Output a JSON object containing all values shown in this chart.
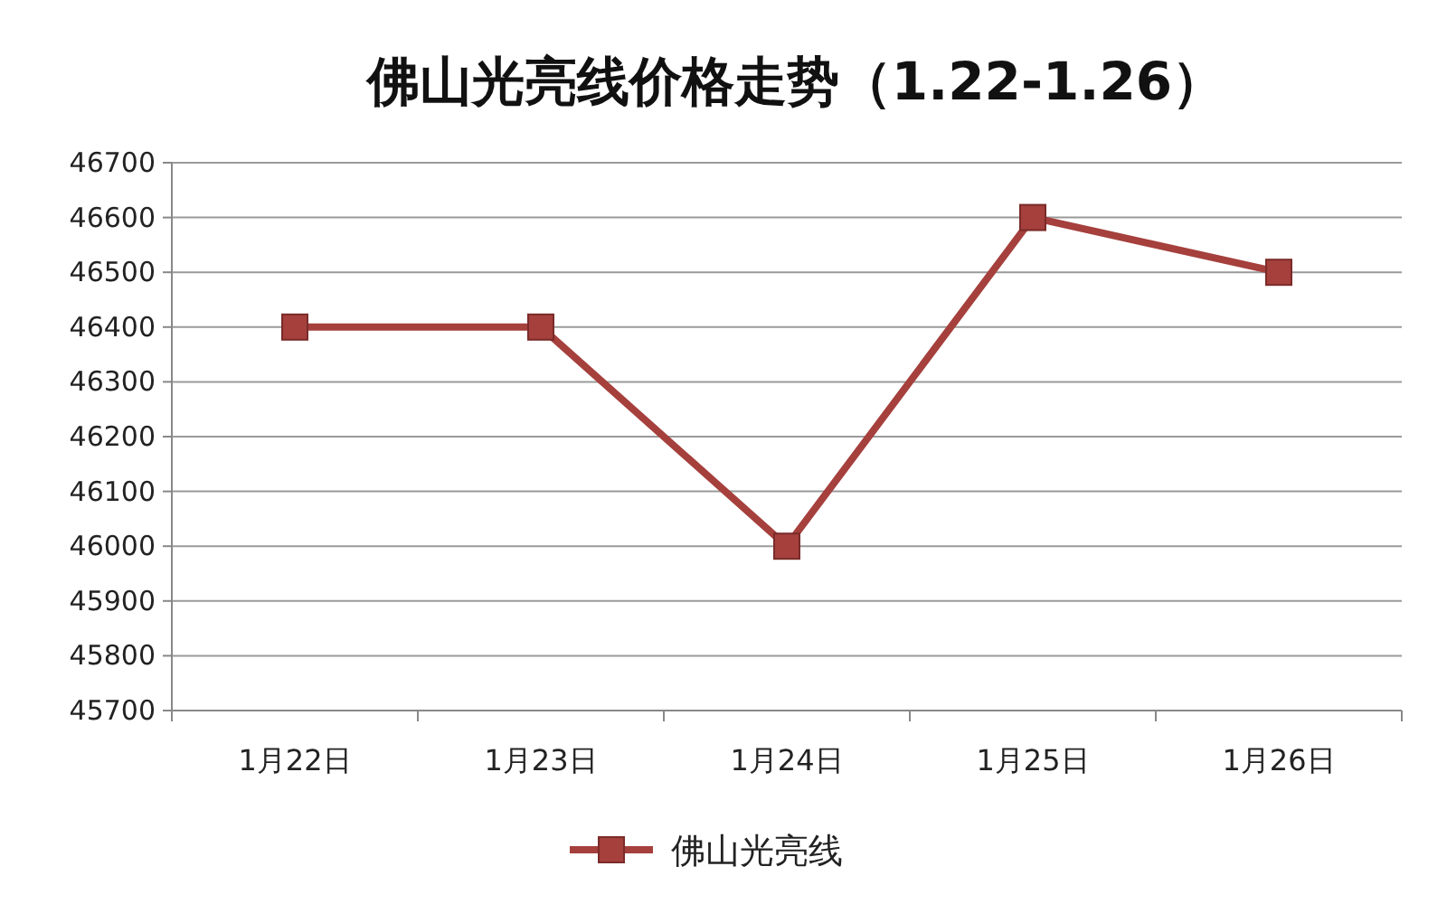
{
  "chart_data": {
    "type": "line",
    "title": "佛山光亮线价格走势（1.22-1.26）",
    "categories": [
      "1月22日",
      "1月23日",
      "1月24日",
      "1月25日",
      "1月26日"
    ],
    "series": [
      {
        "name": "佛山光亮线",
        "color": "#a5403d",
        "values": [
          46400,
          46400,
          46000,
          46600,
          46500
        ]
      }
    ],
    "ylim": [
      45700,
      46700
    ],
    "yticks": [
      45700,
      45800,
      45900,
      46000,
      46100,
      46200,
      46300,
      46400,
      46500,
      46600,
      46700
    ],
    "grid": "y",
    "legend": "bottom",
    "marker": "square",
    "line_style": "solid"
  }
}
